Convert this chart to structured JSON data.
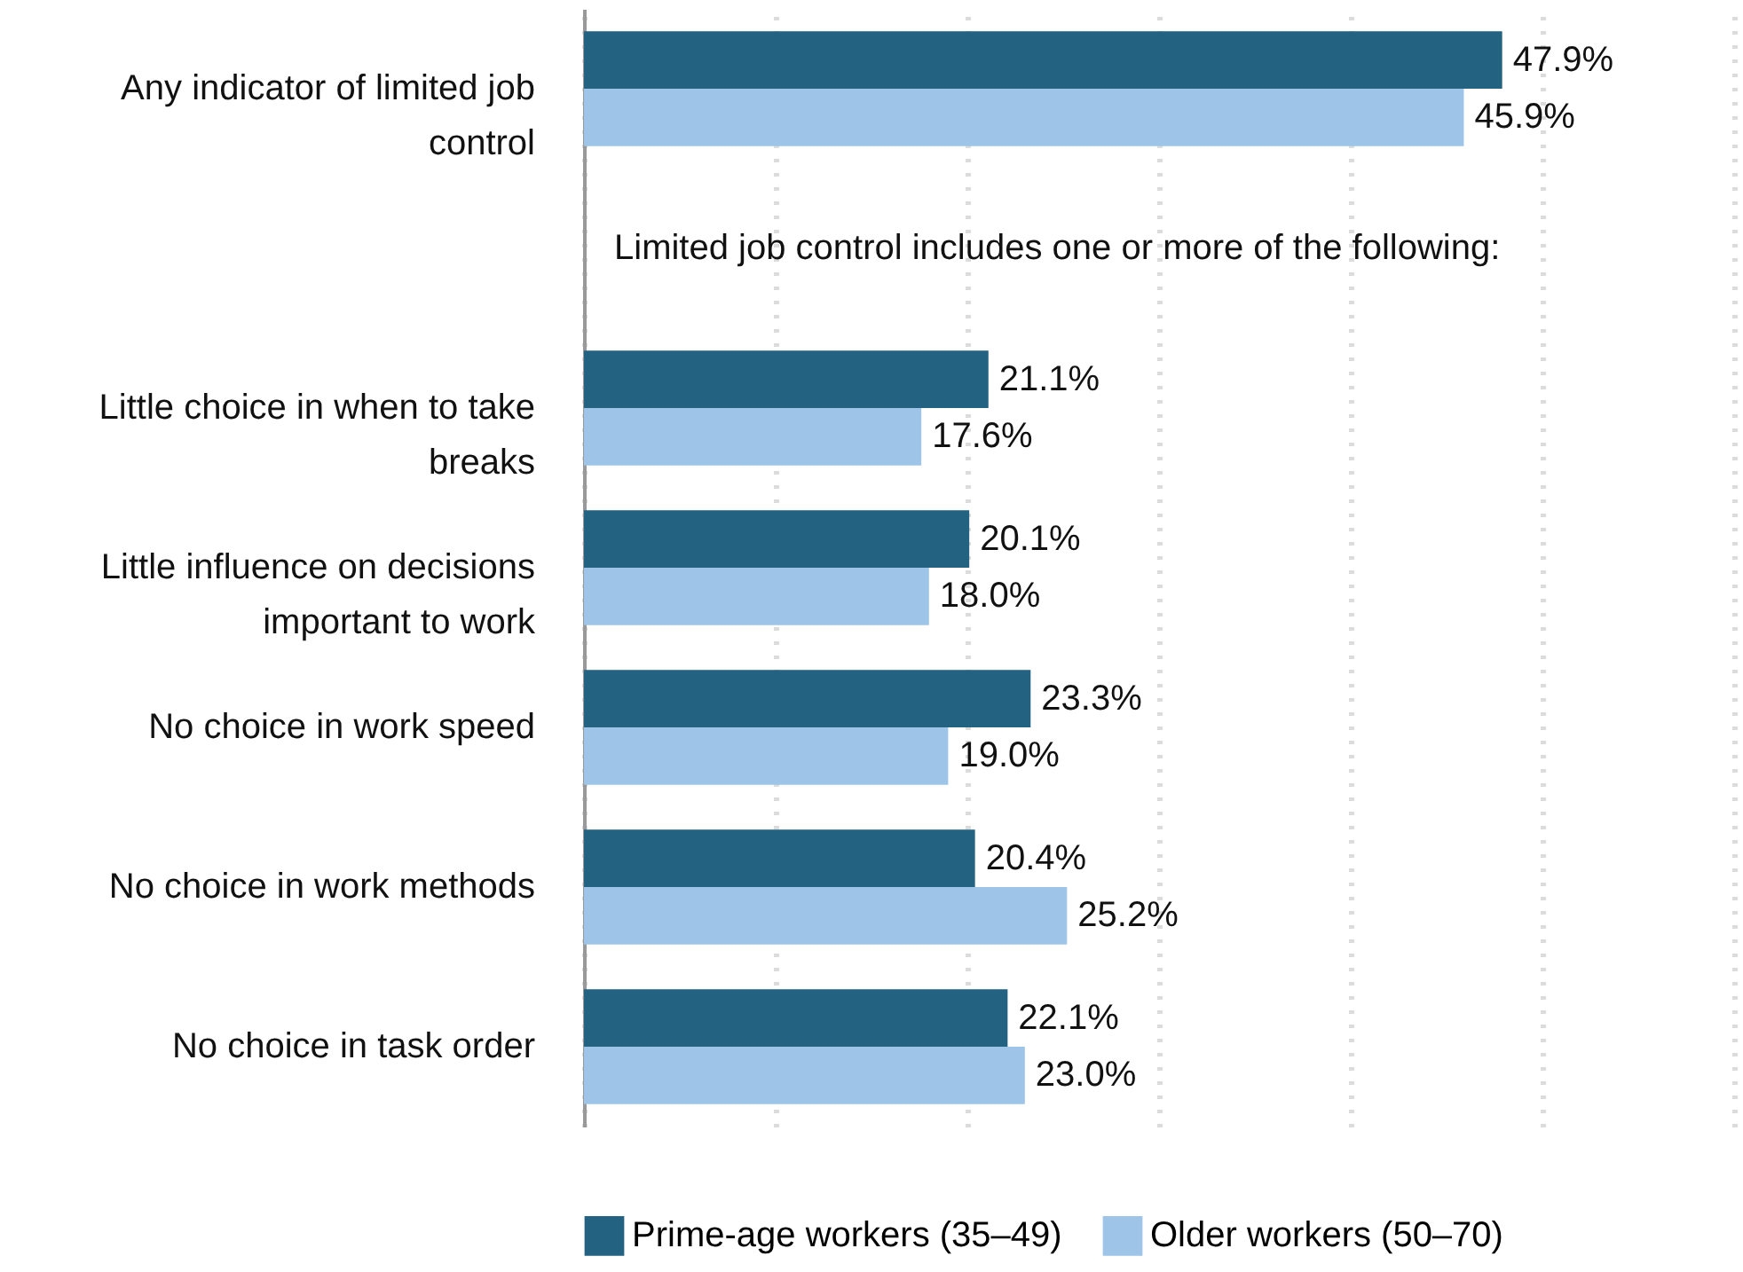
{
  "chart_data": {
    "type": "bar",
    "orientation": "horizontal",
    "categories": [
      "Any indicator of limited job control",
      null,
      "Little choice in when to take breaks",
      "Little influence on decisions important to work",
      "No choice in work speed",
      "No choice in work methods",
      "No choice in task order"
    ],
    "series": [
      {
        "name": "Prime-age workers (35–49)",
        "color": "#246282",
        "values": [
          47.9,
          null,
          21.1,
          20.1,
          23.3,
          20.4,
          22.1
        ],
        "value_labels": [
          "47.9%",
          null,
          "21.1%",
          "20.1%",
          "23.3%",
          "20.4%",
          "22.1%"
        ]
      },
      {
        "name": "Older workers (50–70)",
        "color": "#9ec5e8",
        "values": [
          45.9,
          null,
          17.6,
          18.0,
          19.0,
          25.2,
          23.0
        ],
        "value_labels": [
          "45.9%",
          null,
          "17.6%",
          "18.0%",
          "19.0%",
          "25.2%",
          "23.0%"
        ]
      }
    ],
    "annotations": [
      "Limited job control includes one or more of the following:"
    ],
    "xlim": [
      0,
      60
    ],
    "xticks": [
      {
        "value": 0,
        "label": null
      },
      {
        "value": 10,
        "label": null
      },
      {
        "value": 20,
        "label": null
      },
      {
        "value": 30,
        "label": null
      },
      {
        "value": 40,
        "label": null
      },
      {
        "value": 50,
        "label": null
      },
      {
        "value": 60,
        "label": null
      }
    ],
    "tick_labels": "y",
    "grid": "x",
    "legend": "bottom"
  }
}
